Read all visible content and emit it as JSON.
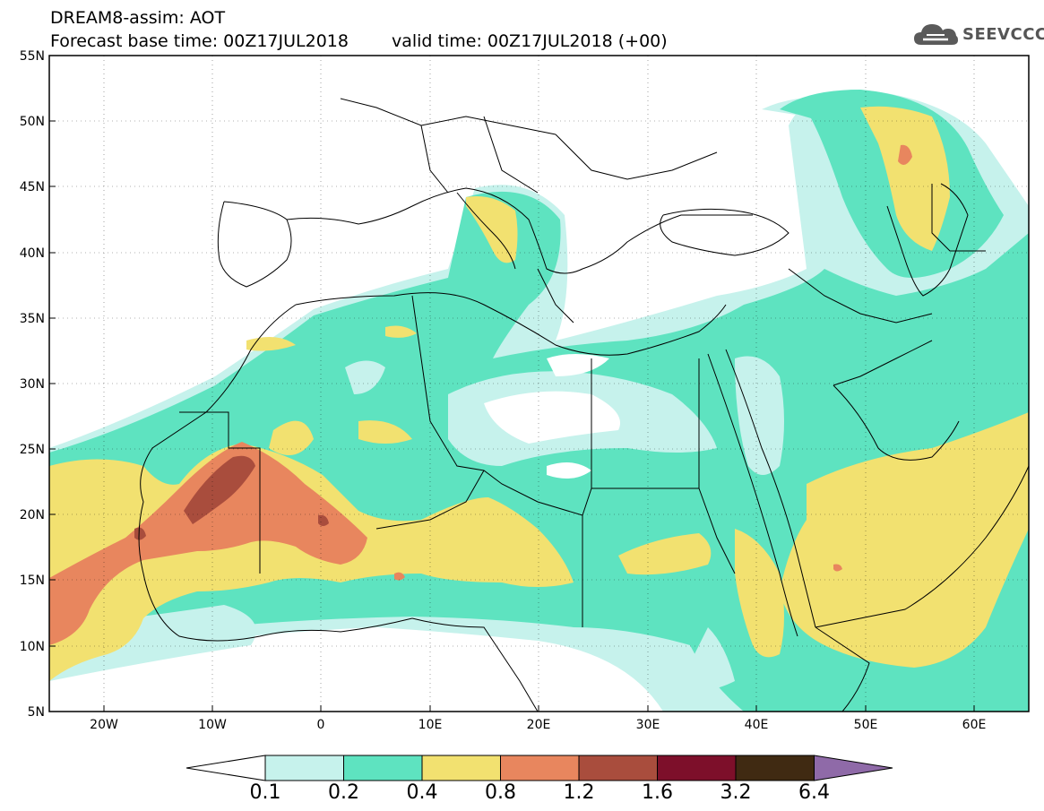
{
  "header": {
    "line1": "DREAM8-assim: AOT",
    "base_time_label": "Forecast base time: 00Z17JUL2018",
    "valid_time_label": "valid time: 00Z17JUL2018 (+00)"
  },
  "logo": {
    "icon": "cloud-icon",
    "text": "SEEVCCC"
  },
  "map": {
    "lat_labels": [
      "55N",
      "50N",
      "45N",
      "40N",
      "35N",
      "30N",
      "25N",
      "20N",
      "15N",
      "10N",
      "5N"
    ],
    "lon_labels": [
      "20W",
      "10W",
      "0",
      "10E",
      "20E",
      "30E",
      "40E",
      "50E",
      "60E"
    ],
    "colors": {
      "c01": "#c6f2ec",
      "c02": "#5ee3c0",
      "c04": "#f2e170",
      "c08": "#e8865e",
      "c12": "#a94d3d",
      "c16": "#7d0f2a",
      "c32": "#402a12",
      "c64": "#8f6aa8"
    }
  },
  "colorbar": {
    "labels": [
      "0.1",
      "0.2",
      "0.4",
      "0.8",
      "1.2",
      "1.6",
      "3.2",
      "6.4"
    ],
    "colors": [
      "#c6f2ec",
      "#5ee3c0",
      "#f2e170",
      "#e8865e",
      "#a94d3d",
      "#7d0f2a",
      "#402a12"
    ],
    "under_color": "#ffffff",
    "over_color": "#8f6aa8"
  }
}
